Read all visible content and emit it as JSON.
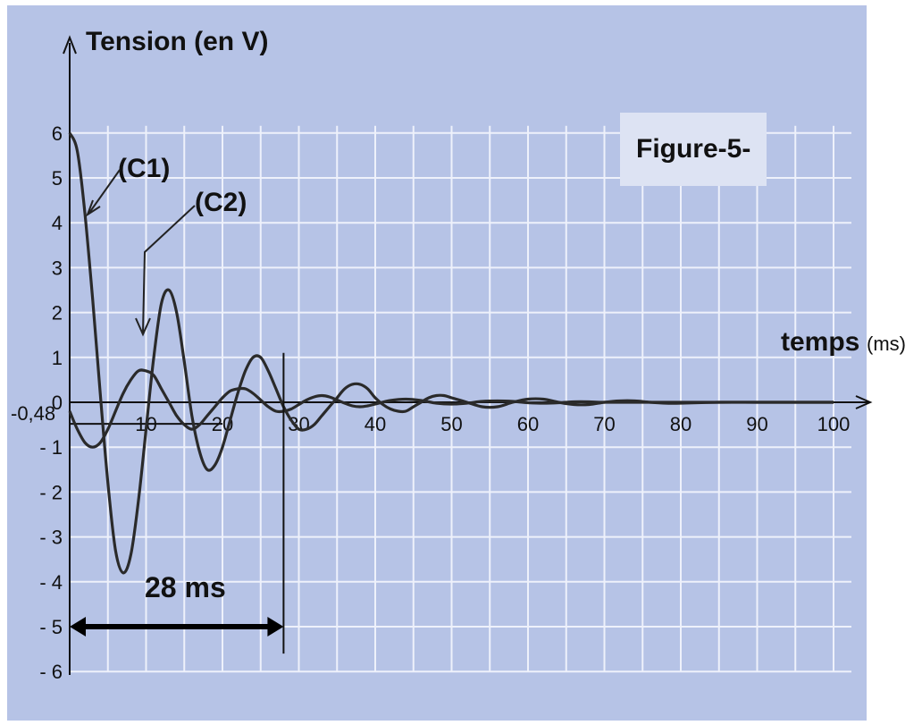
{
  "chart_data": {
    "type": "line",
    "title": "Figure-5-",
    "xlabel": "temps",
    "xunit": "(ms)",
    "ylabel": "Tension (en V)",
    "xlim": [
      0,
      100
    ],
    "ylim": [
      -6,
      6
    ],
    "xticks": [
      10,
      20,
      30,
      40,
      50,
      60,
      70,
      80,
      90,
      100
    ],
    "xtick_labels": [
      "10",
      "20",
      "30",
      "40",
      "50",
      "60",
      "70",
      "80",
      "90",
      "100"
    ],
    "yticks": [
      6,
      5,
      4,
      3,
      2,
      1,
      0,
      -1,
      -2,
      -3,
      -4,
      -5,
      -6
    ],
    "ytick_labels": [
      "6",
      "5",
      "4",
      "3",
      "2",
      "1",
      "0",
      "- 1",
      "- 2",
      "- 3",
      "- 4",
      "- 5",
      "- 6"
    ],
    "grid": true,
    "series": [
      {
        "name": "(C1)",
        "x": [
          0,
          1,
          2,
          3,
          4,
          5,
          6,
          7,
          8,
          9,
          10,
          11,
          12,
          13,
          14,
          15,
          16,
          17,
          18,
          19,
          20,
          21,
          22,
          23,
          24,
          25,
          26,
          27,
          28,
          29,
          30,
          31,
          32,
          33,
          34,
          35,
          36,
          37,
          38,
          39,
          40,
          41,
          42,
          43,
          44,
          45,
          46,
          47,
          48,
          49,
          50,
          52,
          54,
          56,
          58,
          60,
          62,
          64,
          66,
          68,
          70,
          72,
          74,
          76,
          78,
          80,
          85,
          90,
          95,
          100
        ],
        "y": [
          6.0,
          5.6,
          4.2,
          2.3,
          0.2,
          -1.8,
          -3.3,
          -3.8,
          -3.4,
          -2.2,
          -0.6,
          1.0,
          2.2,
          2.5,
          2.0,
          0.9,
          -0.3,
          -1.1,
          -1.5,
          -1.4,
          -1.0,
          -0.4,
          0.2,
          0.7,
          1.0,
          1.0,
          0.7,
          0.3,
          -0.1,
          -0.4,
          -0.6,
          -0.6,
          -0.5,
          -0.3,
          -0.1,
          0.1,
          0.3,
          0.4,
          0.4,
          0.3,
          0.1,
          -0.05,
          -0.15,
          -0.2,
          -0.2,
          -0.1,
          0.0,
          0.1,
          0.15,
          0.15,
          0.1,
          0.0,
          -0.1,
          -0.1,
          0.0,
          0.07,
          0.07,
          0.0,
          -0.05,
          -0.05,
          0.0,
          0.03,
          0.03,
          0.0,
          -0.02,
          -0.02,
          0.0,
          0.0,
          0.0,
          0.0
        ]
      },
      {
        "name": "(C2)",
        "x": [
          0,
          1,
          2,
          3,
          4,
          5,
          6,
          7,
          8,
          9,
          10,
          11,
          12,
          13,
          14,
          15,
          16,
          17,
          18,
          19,
          20,
          21,
          22,
          23,
          24,
          25,
          26,
          27,
          28,
          29,
          30,
          31,
          32,
          33,
          34,
          35,
          36,
          37,
          38,
          39,
          40,
          42,
          44,
          46,
          48,
          50,
          52,
          54,
          56,
          58,
          60,
          62,
          64,
          66,
          68,
          70,
          75,
          80,
          85,
          90,
          95,
          100
        ],
        "y": [
          -0.2,
          -0.6,
          -0.9,
          -1.0,
          -0.9,
          -0.6,
          -0.2,
          0.2,
          0.5,
          0.7,
          0.7,
          0.6,
          0.3,
          0.0,
          -0.3,
          -0.5,
          -0.6,
          -0.5,
          -0.3,
          -0.1,
          0.1,
          0.25,
          0.3,
          0.3,
          0.2,
          0.05,
          -0.1,
          -0.2,
          -0.2,
          -0.15,
          -0.05,
          0.05,
          0.12,
          0.15,
          0.12,
          0.05,
          -0.02,
          -0.08,
          -0.1,
          -0.08,
          -0.04,
          0.04,
          0.07,
          0.04,
          -0.02,
          -0.04,
          -0.02,
          0.02,
          0.03,
          0.02,
          -0.01,
          -0.02,
          -0.01,
          0.01,
          0.01,
          0.0,
          0.0,
          0.0,
          0.0,
          0.0,
          0.0,
          0.0
        ]
      }
    ],
    "annotations": {
      "reference_level_label": "-0,48",
      "reference_level_value": -0.48,
      "period_label": "28 ms",
      "period_x": [
        0,
        28
      ]
    }
  }
}
